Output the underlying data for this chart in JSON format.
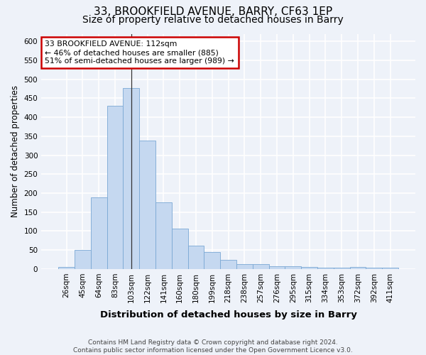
{
  "title1": "33, BROOKFIELD AVENUE, BARRY, CF63 1EP",
  "title2": "Size of property relative to detached houses in Barry",
  "xlabel": "Distribution of detached houses by size in Barry",
  "ylabel": "Number of detached properties",
  "categories": [
    "26sqm",
    "45sqm",
    "64sqm",
    "83sqm",
    "103sqm",
    "122sqm",
    "141sqm",
    "160sqm",
    "180sqm",
    "199sqm",
    "218sqm",
    "238sqm",
    "257sqm",
    "276sqm",
    "295sqm",
    "315sqm",
    "334sqm",
    "353sqm",
    "372sqm",
    "392sqm",
    "411sqm"
  ],
  "values": [
    5,
    50,
    188,
    430,
    477,
    338,
    175,
    107,
    61,
    45,
    24,
    12,
    12,
    8,
    8,
    5,
    4,
    4,
    5,
    4,
    4
  ],
  "bar_color": "#c5d8f0",
  "bar_edge_color": "#7aa8d4",
  "highlight_index": 4,
  "highlight_line_color": "#333333",
  "annotation_line1": "33 BROOKFIELD AVENUE: 112sqm",
  "annotation_line2": "← 46% of detached houses are smaller (885)",
  "annotation_line3": "51% of semi-detached houses are larger (989) →",
  "annotation_box_color": "#ffffff",
  "annotation_box_edge": "#cc0000",
  "ylim": [
    0,
    620
  ],
  "yticks": [
    0,
    50,
    100,
    150,
    200,
    250,
    300,
    350,
    400,
    450,
    500,
    550,
    600
  ],
  "footer": "Contains HM Land Registry data © Crown copyright and database right 2024.\nContains public sector information licensed under the Open Government Licence v3.0.",
  "background_color": "#eef2f9",
  "plot_bg_color": "#eef2f9",
  "grid_color": "#ffffff",
  "title1_fontsize": 11,
  "title2_fontsize": 10,
  "xlabel_fontsize": 9.5,
  "ylabel_fontsize": 8.5,
  "tick_fontsize": 7.5,
  "footer_fontsize": 6.5
}
